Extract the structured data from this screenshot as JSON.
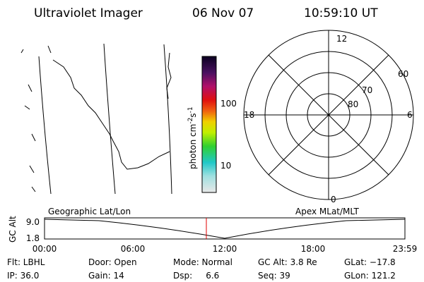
{
  "header": {
    "title": "Ultraviolet Imager",
    "date": "06 Nov 07",
    "time": "10:59:10 UT"
  },
  "colorbar": {
    "label": "photon cm",
    "exp1": "-2",
    "unit2": "s",
    "exp2": "-1",
    "tick_high": "100",
    "tick_low": "10"
  },
  "polar": {
    "top": "12",
    "bottom": "0",
    "left": "18",
    "right": "6",
    "lat_outer": "60",
    "lat_mid": "70",
    "lat_inner": "80"
  },
  "altplot": {
    "left_label": "Geographic Lat/Lon",
    "right_label": "Apex MLat/MLT",
    "ylabel": "GC Alt",
    "yticks": [
      "9.0",
      "1.8"
    ],
    "xticks": [
      "00:00",
      "06:00",
      "12:00",
      "18:00",
      "23:59"
    ]
  },
  "footer": {
    "rows": [
      [
        "Flt: LBHL",
        "Door: Open",
        "Mode: Normal",
        "GC Alt: 3.8 Re",
        "GLat: −17.8"
      ],
      [
        "IP: 36.0",
        "Gain: 14",
        "Dsp:     6.6",
        "Seq: 39",
        "GLon: 121.2"
      ]
    ]
  }
}
